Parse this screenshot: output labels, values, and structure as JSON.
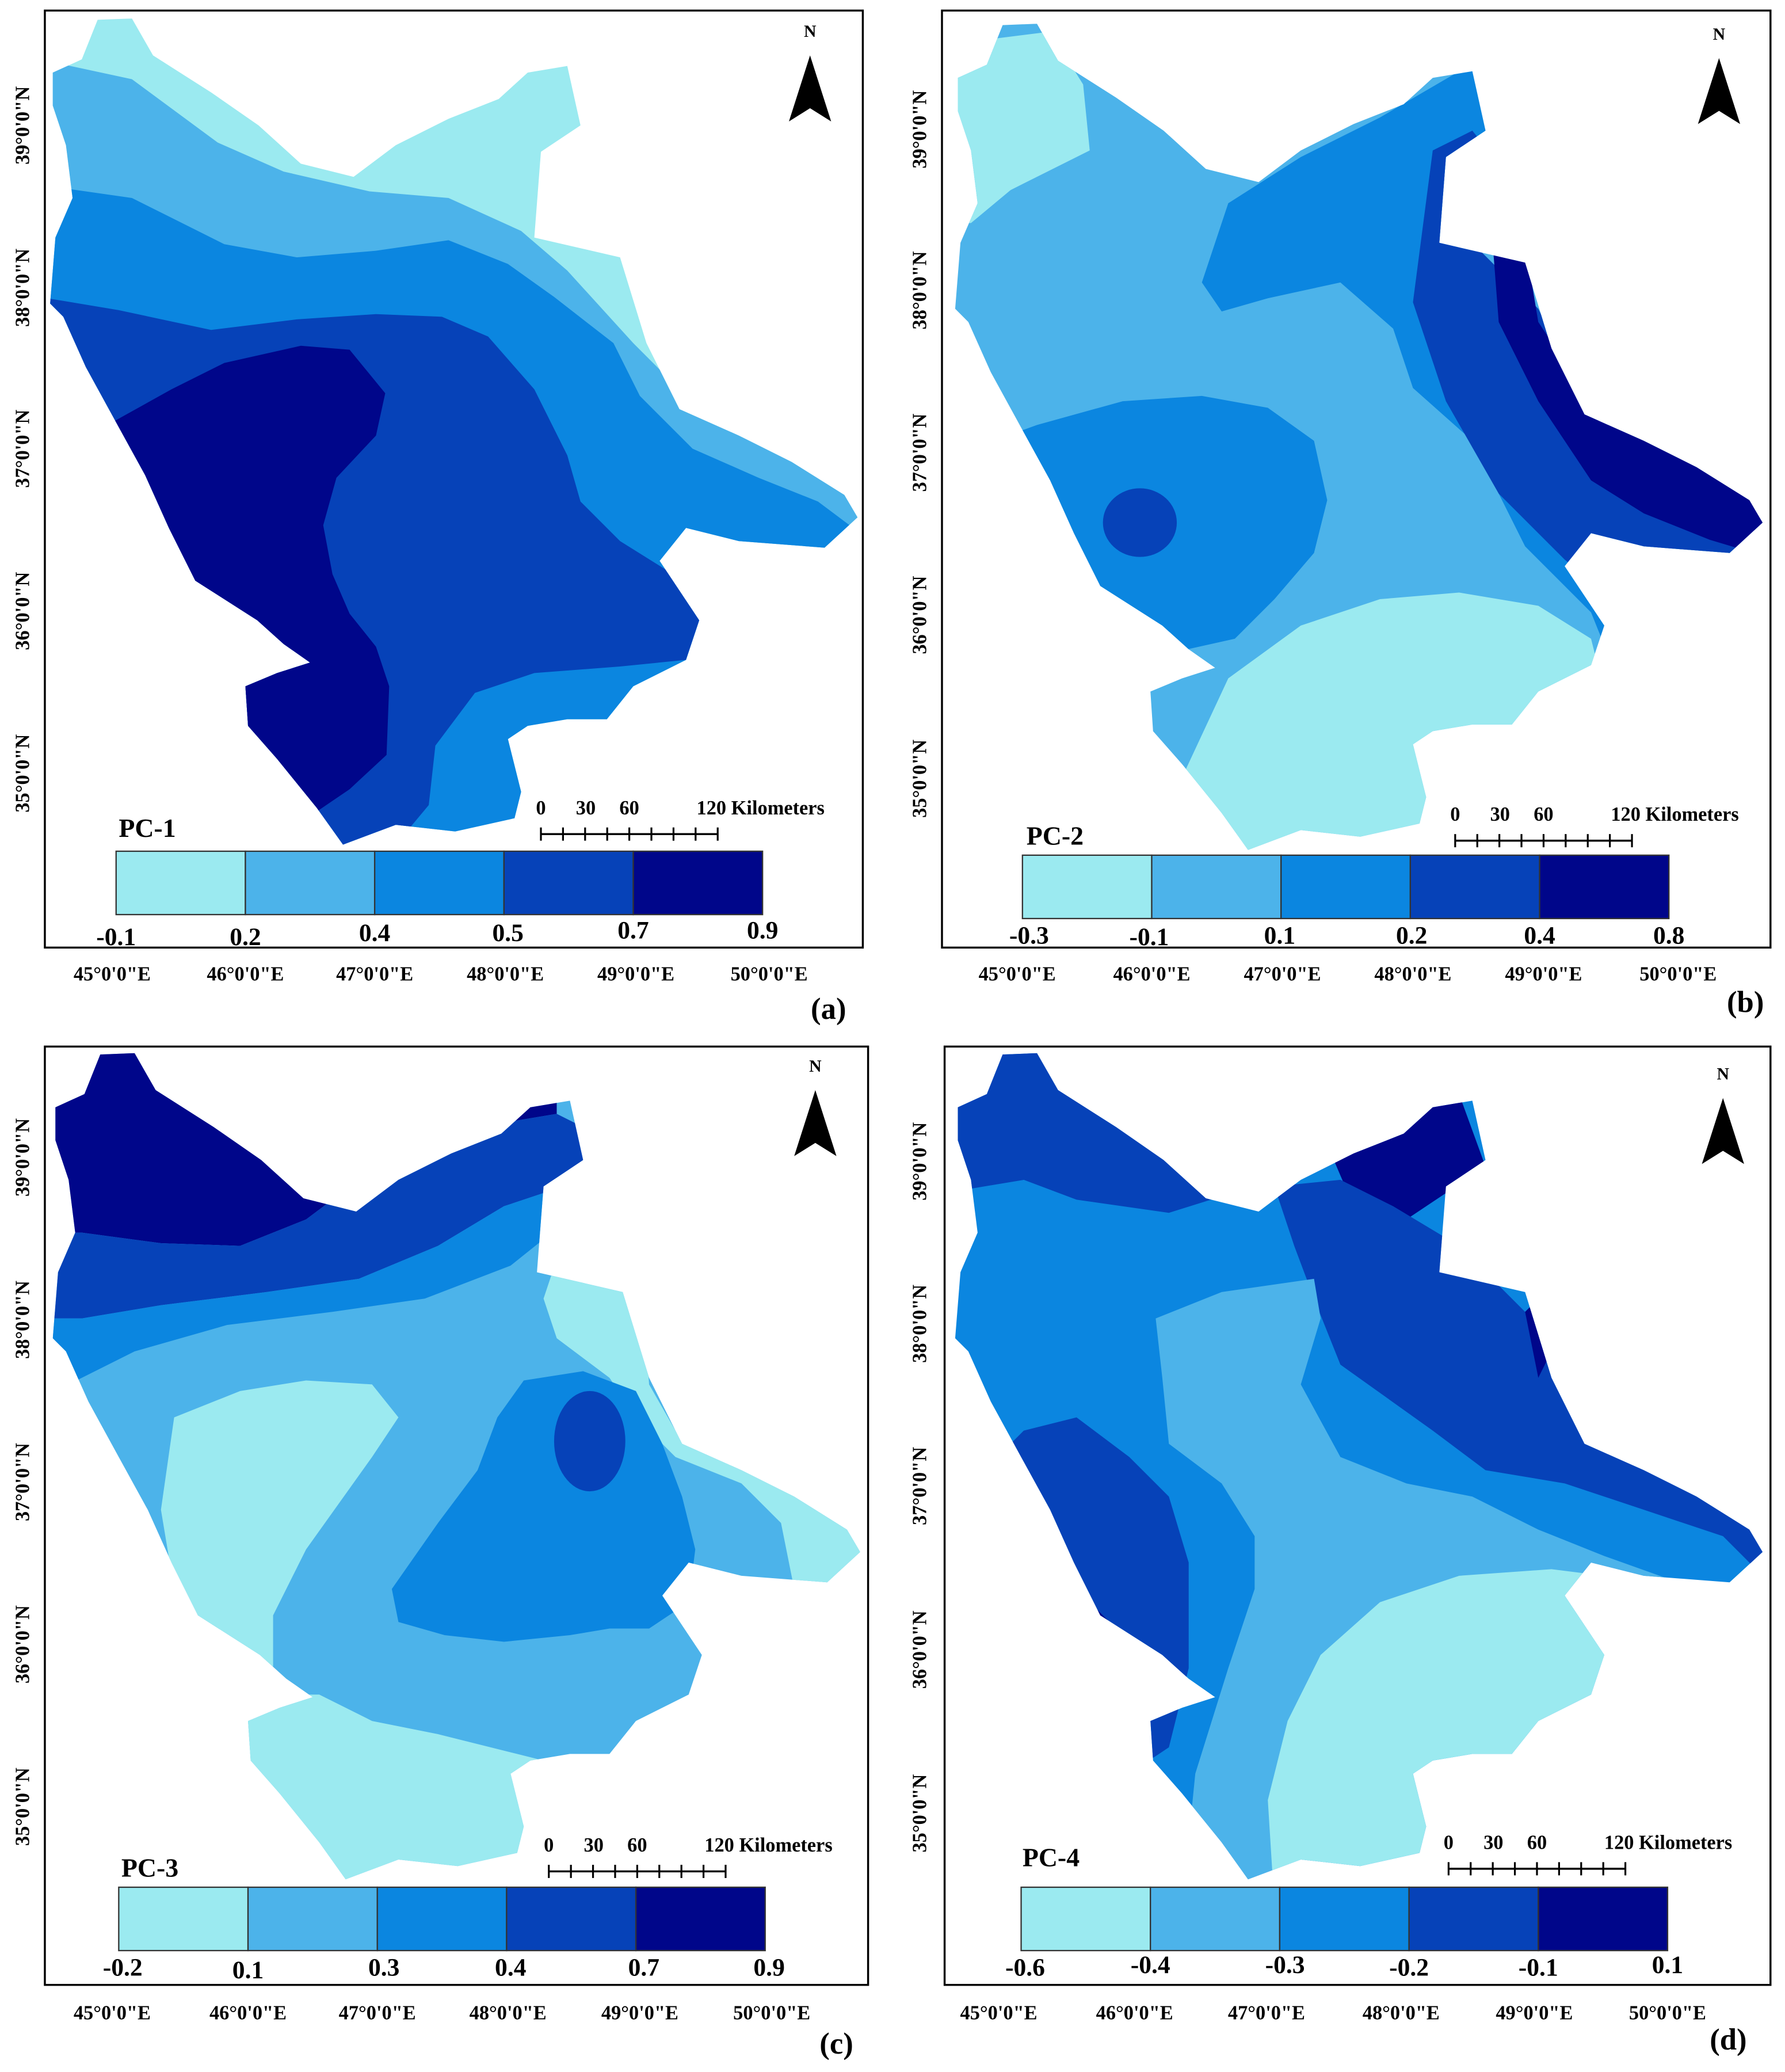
{
  "figure": {
    "colors": {
      "c1": "#9beaf0",
      "c2": "#4cb3ea",
      "c3": "#0b86e0",
      "c4": "#0642b8",
      "c5": "#00068a",
      "frame": "#000000"
    },
    "north_label": "N",
    "lat_labels": [
      "39°0'0\"N",
      "38°0'0\"N",
      "37°0'0\"N",
      "36°0'0\"N",
      "35°0'0\"N"
    ],
    "lon_labels": [
      "45°0'0\"E",
      "46°0'0\"E",
      "47°0'0\"E",
      "48°0'0\"E",
      "49°0'0\"E",
      "50°0'0\"E"
    ],
    "scale_bar": {
      "zero": "0",
      "mid1": "30",
      "mid2": "60",
      "end": "120 Kilometers"
    },
    "panels": [
      {
        "letter": "(a)",
        "title": "PC-1",
        "legend": [
          "-0.1",
          "0.2",
          "0.4",
          "0.5",
          "0.7",
          "0.9"
        ]
      },
      {
        "letter": "(b)",
        "title": "PC-2",
        "legend": [
          "-0.3",
          "-0.1",
          "0.1",
          "0.2",
          "0.4",
          "0.8"
        ]
      },
      {
        "letter": "(c)",
        "title": "PC-3",
        "legend": [
          "-0.2",
          "0.1",
          "0.3",
          "0.4",
          "0.7",
          "0.9"
        ]
      },
      {
        "letter": "(d)",
        "title": "PC-4",
        "legend": [
          "-0.6",
          "-0.4",
          "-0.3",
          "-0.2",
          "-0.1",
          "0.1"
        ]
      }
    ]
  }
}
